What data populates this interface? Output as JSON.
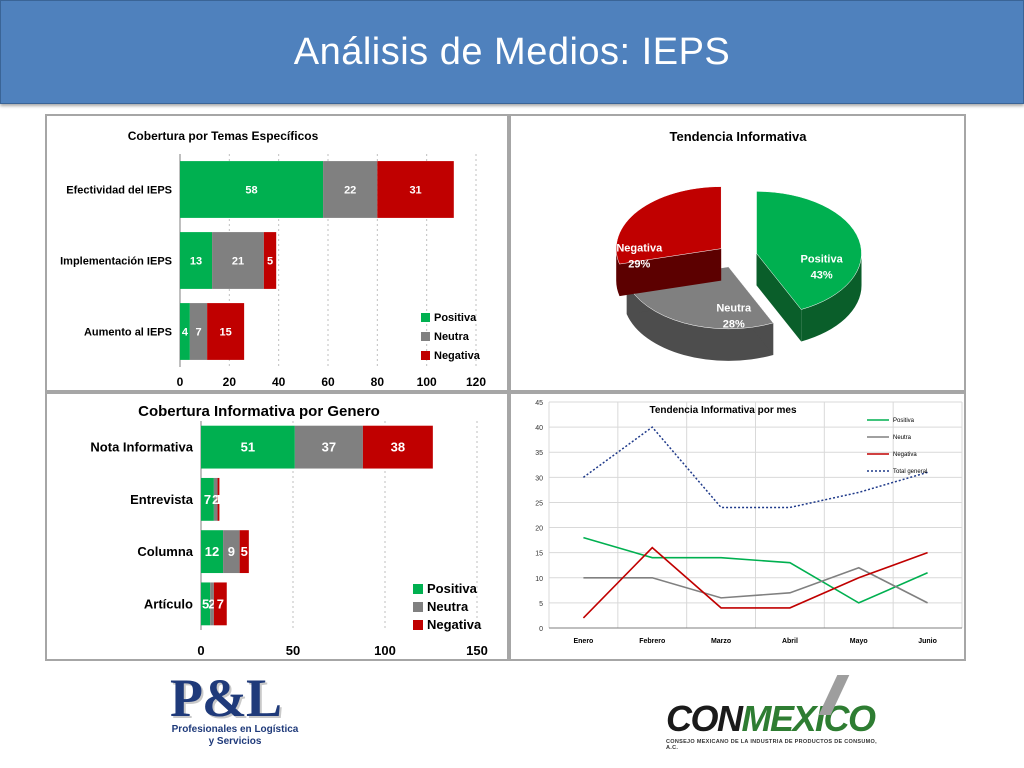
{
  "page_title": "Análisis de Medios: IEPS",
  "colors": {
    "positiva": "#00b050",
    "neutra": "#808080",
    "negativa": "#c00000",
    "total": "#1f3a8a"
  },
  "chart_data": [
    {
      "type": "bar",
      "title": "Cobertura por Temas Específicos",
      "categories": [
        "Efectividad del IEPS",
        "Implementación IEPS",
        "Aumento al IEPS"
      ],
      "series": [
        {
          "name": "Positiva",
          "values": [
            58,
            13,
            4
          ]
        },
        {
          "name": "Neutra",
          "values": [
            22,
            21,
            7
          ]
        },
        {
          "name": "Negativa",
          "values": [
            31,
            5,
            15
          ]
        }
      ],
      "xlim": [
        0,
        120
      ],
      "ticks": [
        "0",
        "20",
        "40",
        "60",
        "80",
        "100",
        "120"
      ],
      "legend": "bottom-right",
      "stacked": true
    },
    {
      "type": "pie",
      "title": "Tendencia Informativa",
      "slices": [
        {
          "name": "Positiva",
          "value": 43,
          "label": "43%"
        },
        {
          "name": "Neutra",
          "value": 28,
          "label": "28%"
        },
        {
          "name": "Negativa",
          "value": 29,
          "label": "29%"
        }
      ]
    },
    {
      "type": "bar",
      "title": "Cobertura Informativa por Genero",
      "categories": [
        "Nota Informativa",
        "Entrevista",
        "Columna",
        "Artículo"
      ],
      "series": [
        {
          "name": "Positiva",
          "values": [
            51,
            7,
            12,
            5
          ]
        },
        {
          "name": "Neutra",
          "values": [
            37,
            2,
            9,
            2
          ]
        },
        {
          "name": "Negativa",
          "values": [
            38,
            1,
            5,
            7
          ]
        }
      ],
      "xlim": [
        0,
        150
      ],
      "ticks": [
        "0",
        "50",
        "100",
        "150"
      ],
      "legend": "bottom-right",
      "stacked": true
    },
    {
      "type": "line",
      "title": "Tendencia Informativa por mes",
      "x": [
        "Enero",
        "Febrero",
        "Marzo",
        "Abril",
        "Mayo",
        "Junio"
      ],
      "series": [
        {
          "name": "Positiva",
          "values": [
            18,
            14,
            14,
            13,
            5,
            11
          ]
        },
        {
          "name": "Neutra",
          "values": [
            10,
            10,
            6,
            7,
            12,
            5
          ]
        },
        {
          "name": "Negativa",
          "values": [
            2,
            16,
            4,
            4,
            10,
            15
          ]
        },
        {
          "name": "Total general",
          "values": [
            30,
            40,
            24,
            24,
            27,
            31
          ]
        }
      ],
      "ylim": [
        0,
        45
      ],
      "yticks": [
        "0",
        "5",
        "10",
        "15",
        "20",
        "25",
        "30",
        "35",
        "40",
        "45"
      ],
      "legend": "top-right",
      "grid": true
    }
  ],
  "logos": {
    "pl": {
      "mark": "P&L",
      "line1": "Profesionales en Logística",
      "line2": "y Servicios"
    },
    "conmexico": {
      "word_a": "CON",
      "word_b": "MEXICO",
      "tagline": "CONSEJO MEXICANO DE LA INDUSTRIA DE PRODUCTOS DE CONSUMO, A.C."
    }
  }
}
